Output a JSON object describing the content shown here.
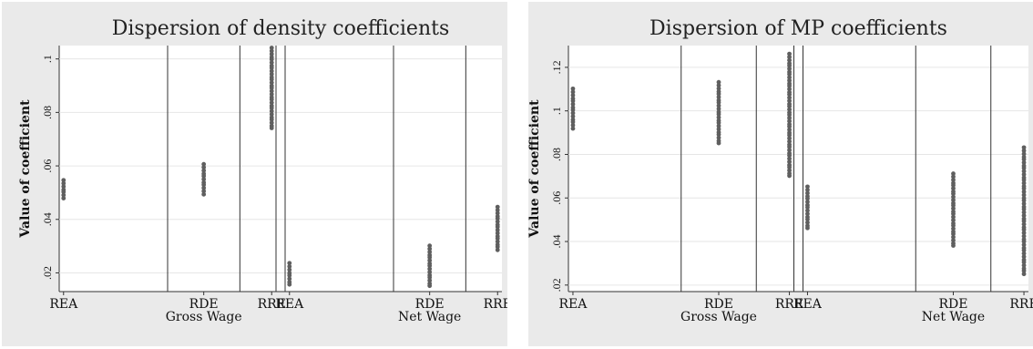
{
  "chart_data": [
    {
      "type": "scatter",
      "title": "Dispersion of density coefficients",
      "ylabel": "Value of coefficient",
      "xlabel": "",
      "ylim": [
        0.013,
        0.105
      ],
      "yticks": [
        0.02,
        0.04,
        0.06,
        0.08,
        0.1
      ],
      "ytick_labels": [
        ".02",
        ".04",
        ".06",
        ".08",
        ".1"
      ],
      "grid": true,
      "groups": [
        {
          "label": "Gross Wage",
          "categories": [
            "REA",
            "RDE",
            "RRE"
          ]
        },
        {
          "label": "Net Wage",
          "categories": [
            "REA",
            "RDE",
            "RRE"
          ]
        }
      ],
      "series": [
        {
          "group": "Gross Wage",
          "category": "REA",
          "min": 0.048,
          "max": 0.0545
        },
        {
          "group": "Gross Wage",
          "category": "RDE",
          "min": 0.0495,
          "max": 0.0605
        },
        {
          "group": "Gross Wage",
          "category": "RRE",
          "min": 0.074,
          "max": 0.104
        },
        {
          "group": "Net Wage",
          "category": "REA",
          "min": 0.0155,
          "max": 0.0235
        },
        {
          "group": "Net Wage",
          "category": "RDE",
          "min": 0.015,
          "max": 0.03
        },
        {
          "group": "Net Wage",
          "category": "RRE",
          "min": 0.0285,
          "max": 0.0445
        }
      ]
    },
    {
      "type": "scatter",
      "title": "Dispersion of MP coefficients",
      "ylabel": "Value of coefficient",
      "xlabel": "",
      "ylim": [
        0.017,
        0.13
      ],
      "yticks": [
        0.02,
        0.04,
        0.06,
        0.08,
        0.1,
        0.12
      ],
      "ytick_labels": [
        ".02",
        ".04",
        ".06",
        ".08",
        ".1",
        ".12"
      ],
      "grid": true,
      "groups": [
        {
          "label": "Gross Wage",
          "categories": [
            "REA",
            "RDE",
            "RRE"
          ]
        },
        {
          "label": "Net Wage",
          "categories": [
            "REA",
            "RDE",
            "RRE"
          ]
        }
      ],
      "series": [
        {
          "group": "Gross Wage",
          "category": "REA",
          "min": 0.092,
          "max": 0.11
        },
        {
          "group": "Gross Wage",
          "category": "RDE",
          "min": 0.085,
          "max": 0.113
        },
        {
          "group": "Gross Wage",
          "category": "RRE",
          "min": 0.07,
          "max": 0.126
        },
        {
          "group": "Net Wage",
          "category": "REA",
          "min": 0.046,
          "max": 0.065
        },
        {
          "group": "Net Wage",
          "category": "RDE",
          "min": 0.038,
          "max": 0.071
        },
        {
          "group": "Net Wage",
          "category": "RRE",
          "min": 0.025,
          "max": 0.083
        }
      ]
    }
  ],
  "colors": {
    "points": "#5f5f5f",
    "panel_background": "#eaeaea",
    "plot_background": "#ffffff"
  }
}
